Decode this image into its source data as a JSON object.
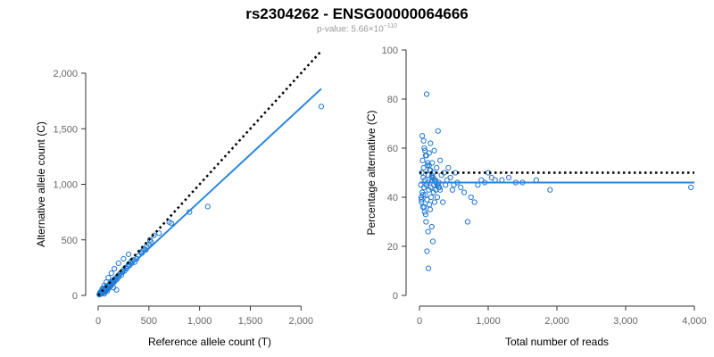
{
  "title": "rs2304262 - ENSG00000064666",
  "subtitle": {
    "prefix": "p-value: 5.66×10",
    "exponent": "−110"
  },
  "colors": {
    "points": "#1f78d1",
    "fit_line": "#2b86e0",
    "reference_line": "#000000"
  },
  "chart_data": [
    {
      "type": "scatter",
      "xlabel": "Reference allele count (T)",
      "ylabel": "Alternative allele count (C)",
      "xlim": [
        0,
        2200
      ],
      "ylim": [
        0,
        2000
      ],
      "xticks": [
        0,
        500,
        1000,
        1500,
        2000
      ],
      "xtick_labels": [
        "0",
        "500",
        "1,000",
        "1,500",
        "2,000"
      ],
      "yticks": [
        0,
        500,
        1000,
        1500,
        2000
      ],
      "ytick_labels": [
        "0",
        "500",
        "1,000",
        "1,500",
        "2,000"
      ],
      "grid": false,
      "reference_line": {
        "style": "dotted",
        "x": [
          0,
          2200
        ],
        "y": [
          0,
          2200
        ]
      },
      "fit_line": {
        "style": "solid",
        "x": [
          0,
          2200
        ],
        "y": [
          0,
          1860
        ]
      },
      "points": {
        "x": [
          10,
          15,
          18,
          20,
          22,
          25,
          28,
          30,
          32,
          35,
          38,
          40,
          42,
          45,
          48,
          50,
          52,
          55,
          58,
          60,
          62,
          65,
          68,
          70,
          72,
          75,
          78,
          80,
          85,
          88,
          90,
          95,
          100,
          105,
          110,
          112,
          118,
          120,
          125,
          130,
          135,
          140,
          145,
          150,
          155,
          160,
          165,
          170,
          180,
          185,
          190,
          200,
          205,
          210,
          220,
          230,
          240,
          250,
          260,
          270,
          280,
          290,
          300,
          310,
          320,
          330,
          340,
          350,
          360,
          380,
          400,
          420,
          430,
          440,
          450,
          470,
          480,
          500,
          510,
          520,
          550,
          600,
          700,
          720,
          900,
          1080,
          2200,
          40,
          60,
          80,
          100,
          130,
          160,
          200,
          250,
          300,
          150,
          180,
          60,
          90
        ],
        "y": [
          8,
          10,
          25,
          15,
          30,
          12,
          20,
          35,
          18,
          40,
          22,
          28,
          45,
          30,
          50,
          25,
          60,
          35,
          42,
          55,
          30,
          48,
          65,
          40,
          52,
          70,
          45,
          80,
          60,
          75,
          55,
          70,
          90,
          65,
          100,
          80,
          95,
          110,
          85,
          120,
          100,
          105,
          130,
          115,
          140,
          125,
          150,
          135,
          160,
          145,
          170,
          180,
          165,
          190,
          200,
          185,
          210,
          230,
          220,
          250,
          240,
          260,
          280,
          270,
          300,
          290,
          310,
          320,
          300,
          330,
          360,
          390,
          380,
          400,
          420,
          410,
          440,
          460,
          500,
          480,
          540,
          560,
          660,
          650,
          750,
          800,
          1700,
          60,
          90,
          120,
          160,
          200,
          240,
          290,
          330,
          370,
          70,
          50,
          15,
          40
        ]
      }
    },
    {
      "type": "scatter",
      "xlabel": "Total number of reads",
      "ylabel": "Percentage alternative (C)",
      "xlim": [
        0,
        4000
      ],
      "ylim": [
        0,
        100
      ],
      "xticks": [
        0,
        1000,
        2000,
        3000,
        4000
      ],
      "xtick_labels": [
        "0",
        "1,000",
        "2,000",
        "3,000",
        "4,000"
      ],
      "yticks": [
        0,
        20,
        40,
        60,
        80,
        100
      ],
      "ytick_labels": [
        "0",
        "20",
        "40",
        "60",
        "80",
        "100"
      ],
      "grid": false,
      "reference_line": {
        "style": "dotted",
        "x": [
          0,
          4000
        ],
        "y": [
          50,
          50
        ]
      },
      "fit_line": {
        "style": "solid",
        "x": [
          0,
          4000
        ],
        "y": [
          46,
          46
        ]
      },
      "points": {
        "x": [
          20,
          25,
          30,
          35,
          40,
          45,
          50,
          55,
          60,
          65,
          70,
          75,
          80,
          85,
          90,
          95,
          100,
          105,
          110,
          115,
          120,
          125,
          130,
          135,
          140,
          145,
          150,
          155,
          160,
          165,
          170,
          175,
          180,
          185,
          190,
          195,
          200,
          205,
          210,
          215,
          220,
          230,
          240,
          250,
          260,
          270,
          280,
          290,
          300,
          320,
          340,
          360,
          380,
          400,
          420,
          450,
          480,
          500,
          520,
          550,
          600,
          650,
          700,
          750,
          800,
          850,
          900,
          950,
          1000,
          1050,
          1100,
          1200,
          1300,
          1400,
          1500,
          1700,
          1900,
          3950,
          40,
          60,
          80,
          100,
          120,
          140,
          160,
          180,
          200,
          220,
          240,
          260,
          280,
          300,
          130,
          110,
          90,
          70,
          50,
          30
        ],
        "y": [
          45,
          40,
          38,
          50,
          42,
          55,
          36,
          48,
          52,
          44,
          60,
          34,
          47,
          41,
          57,
          30,
          45,
          82,
          39,
          53,
          46,
          26,
          49,
          43,
          58,
          37,
          51,
          35,
          62,
          44,
          40,
          48,
          28,
          54,
          47,
          22,
          50,
          42,
          45,
          59,
          38,
          47,
          43,
          52,
          40,
          67,
          46,
          44,
          55,
          49,
          38,
          50,
          45,
          47,
          52,
          48,
          43,
          45,
          50,
          46,
          44,
          42,
          30,
          40,
          38,
          45,
          47,
          46,
          50,
          48,
          47,
          47,
          48,
          46,
          46,
          47,
          43,
          44,
          65,
          63,
          59,
          57,
          54,
          53,
          51,
          49,
          48,
          47,
          46,
          45,
          44,
          43,
          11,
          18,
          33,
          36,
          41,
          39
        ]
      }
    }
  ]
}
